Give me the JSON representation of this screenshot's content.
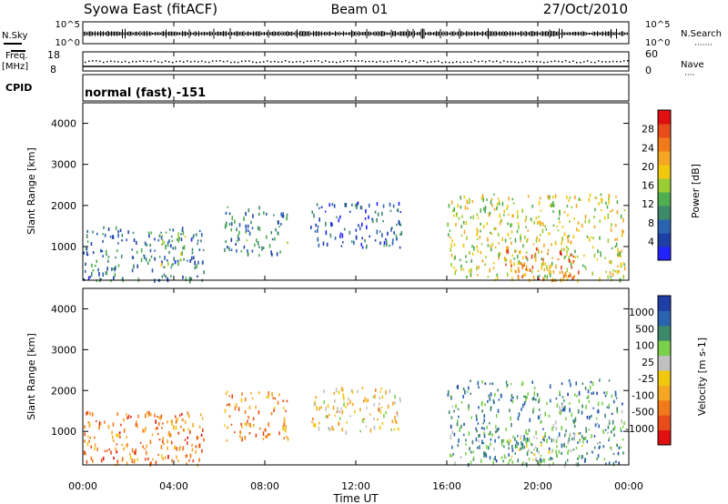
{
  "header": {
    "station": "Syowa East (fitACF)",
    "beam": "Beam 01",
    "date": "27/Oct/2010"
  },
  "strips": {
    "nsky_label": "N.Sky",
    "nsky_ticks": [
      "10^5",
      "10^0"
    ],
    "nsearch_label": "N.Search",
    "nsearch_ticks": [
      "10^5",
      "10^0"
    ],
    "freq_label_1": "Freq.",
    "freq_label_2": "[MHz]",
    "freq_ticks": [
      "18",
      "8"
    ],
    "nave_label": "Nave",
    "nave_ticks": [
      "60",
      "0"
    ],
    "cpid_label": "CPID",
    "cpid_value": "normal (fast) -151"
  },
  "chart_data": [
    {
      "type": "heatmap",
      "name": "power-panel",
      "ylabel": "Slant Range [km]",
      "xlabel": "Time UT",
      "yticks": [
        "1000",
        "2000",
        "3000",
        "4000"
      ],
      "ylim": [
        180,
        4500
      ],
      "xlim_hours": [
        0,
        24
      ],
      "colorbar": {
        "label": "Power [dB]",
        "ticks": [
          "28",
          "24",
          "20",
          "16",
          "12",
          "8",
          "4"
        ],
        "colors": [
          "#2222ff",
          "#1f3fa8",
          "#2a64b0",
          "#3d8a6a",
          "#4fae4f",
          "#9acd32",
          "#f2c80f",
          "#f5a623",
          "#f27a1a",
          "#e84c1a",
          "#e01010"
        ]
      },
      "regions": [
        {
          "t0": 0.0,
          "t1": 5.3,
          "r0": 200,
          "r1": 1500,
          "level": 0.25
        },
        {
          "t0": 3.3,
          "t1": 4.5,
          "r0": 600,
          "r1": 1400,
          "level": 0.45
        },
        {
          "t0": 6.2,
          "t1": 9.0,
          "r0": 800,
          "r1": 2000,
          "level": 0.3
        },
        {
          "t0": 10.0,
          "t1": 14.0,
          "r0": 1000,
          "r1": 2100,
          "level": 0.2
        },
        {
          "t0": 16.0,
          "t1": 23.8,
          "r0": 200,
          "r1": 2300,
          "level": 0.55
        },
        {
          "t0": 18.5,
          "t1": 22.0,
          "r0": 200,
          "r1": 1000,
          "level": 0.75
        }
      ]
    },
    {
      "type": "heatmap",
      "name": "velocity-panel",
      "ylabel": "Slant Range [km]",
      "xlabel": "Time UT",
      "yticks": [
        "1000",
        "2000",
        "3000",
        "4000"
      ],
      "ylim": [
        180,
        4500
      ],
      "xlim_hours": [
        0,
        24
      ],
      "colorbar": {
        "label": "Velocity [m s-1]",
        "ticks": [
          "1000",
          "500",
          "100",
          "25",
          "-25",
          "-100",
          "-500",
          "-1000"
        ],
        "colors": [
          "#e01010",
          "#e84c1a",
          "#f27a1a",
          "#f5a623",
          "#f2c80f",
          "#c0c0c0",
          "#7ad04a",
          "#3d8a6a",
          "#2a64b0",
          "#1f3fa8"
        ]
      },
      "regions": [
        {
          "t0": 0.0,
          "t1": 5.3,
          "r0": 200,
          "r1": 1500,
          "level": 0.25
        },
        {
          "t0": 3.3,
          "t1": 4.5,
          "r0": 600,
          "r1": 1400,
          "level": 0.35
        },
        {
          "t0": 6.2,
          "t1": 9.0,
          "r0": 800,
          "r1": 2000,
          "level": 0.3
        },
        {
          "t0": 10.0,
          "t1": 14.0,
          "r0": 1000,
          "r1": 2100,
          "level": 0.45
        },
        {
          "t0": 16.0,
          "t1": 23.8,
          "r0": 200,
          "r1": 2300,
          "level": 0.75
        },
        {
          "t0": 18.5,
          "t1": 22.0,
          "r0": 200,
          "r1": 1000,
          "level": 0.6
        }
      ]
    }
  ],
  "time_axis": {
    "ticks": [
      "00:00",
      "04:00",
      "08:00",
      "12:00",
      "16:00",
      "20:00",
      "00:00"
    ],
    "label": "Time UT"
  }
}
